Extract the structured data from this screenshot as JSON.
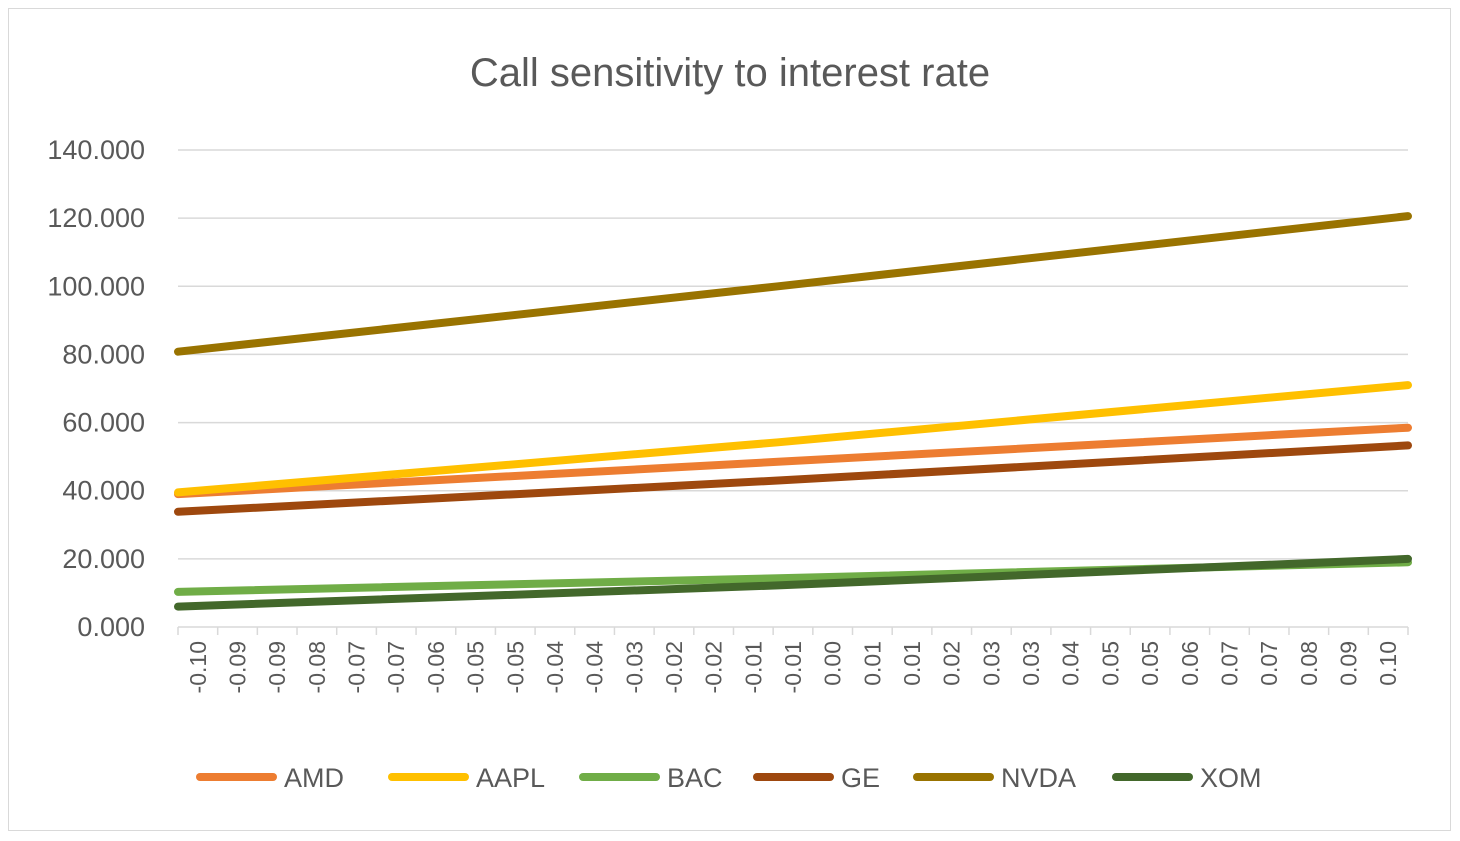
{
  "chart_data": {
    "type": "line",
    "title": "Call sensitivity to interest rate",
    "xlabel": "",
    "ylabel": "",
    "ylim": [
      0,
      140
    ],
    "ytick_values": [
      0,
      20,
      40,
      60,
      80,
      100,
      120,
      140
    ],
    "ytick_labels": [
      "0.000",
      "20.000",
      "40.000",
      "60.000",
      "80.000",
      "100.000",
      "120.000",
      "140.000"
    ],
    "x_range": [
      -0.1,
      0.105
    ],
    "xtick_labels": [
      "-0.10",
      "-0.09",
      "-0.09",
      "-0.08",
      "-0.07",
      "-0.07",
      "-0.06",
      "-0.05",
      "-0.05",
      "-0.04",
      "-0.04",
      "-0.03",
      "-0.02",
      "-0.02",
      "-0.01",
      "-0.01",
      "0.00",
      "0.01",
      "0.01",
      "0.02",
      "0.03",
      "0.03",
      "0.04",
      "0.05",
      "0.05",
      "0.06",
      "0.07",
      "0.07",
      "0.08",
      "0.09",
      "0.10"
    ],
    "grid": true,
    "legend": "bottom",
    "series": [
      {
        "name": "AMD",
        "color": "#ED7D31",
        "x": [
          -0.1,
          0.0,
          0.105
        ],
        "y": [
          39.0,
          48.5,
          58.5
        ]
      },
      {
        "name": "AAPL",
        "color": "#FFC000",
        "x": [
          -0.1,
          0.0,
          0.105
        ],
        "y": [
          39.5,
          54.2,
          71.0
        ]
      },
      {
        "name": "BAC",
        "color": "#70AD47",
        "x": [
          -0.1,
          0.0,
          0.105
        ],
        "y": [
          10.3,
          14.3,
          19.0
        ]
      },
      {
        "name": "GE",
        "color": "#9E480E",
        "x": [
          -0.1,
          0.0,
          0.105
        ],
        "y": [
          33.8,
          43.0,
          53.3
        ]
      },
      {
        "name": "NVDA",
        "color": "#997300",
        "x": [
          -0.1,
          0.0,
          0.105
        ],
        "y": [
          80.8,
          100.0,
          120.6
        ]
      },
      {
        "name": "XOM",
        "color": "#43682B",
        "x": [
          -0.1,
          0.0,
          0.105
        ],
        "y": [
          6.0,
          12.2,
          20.0
        ]
      }
    ]
  }
}
